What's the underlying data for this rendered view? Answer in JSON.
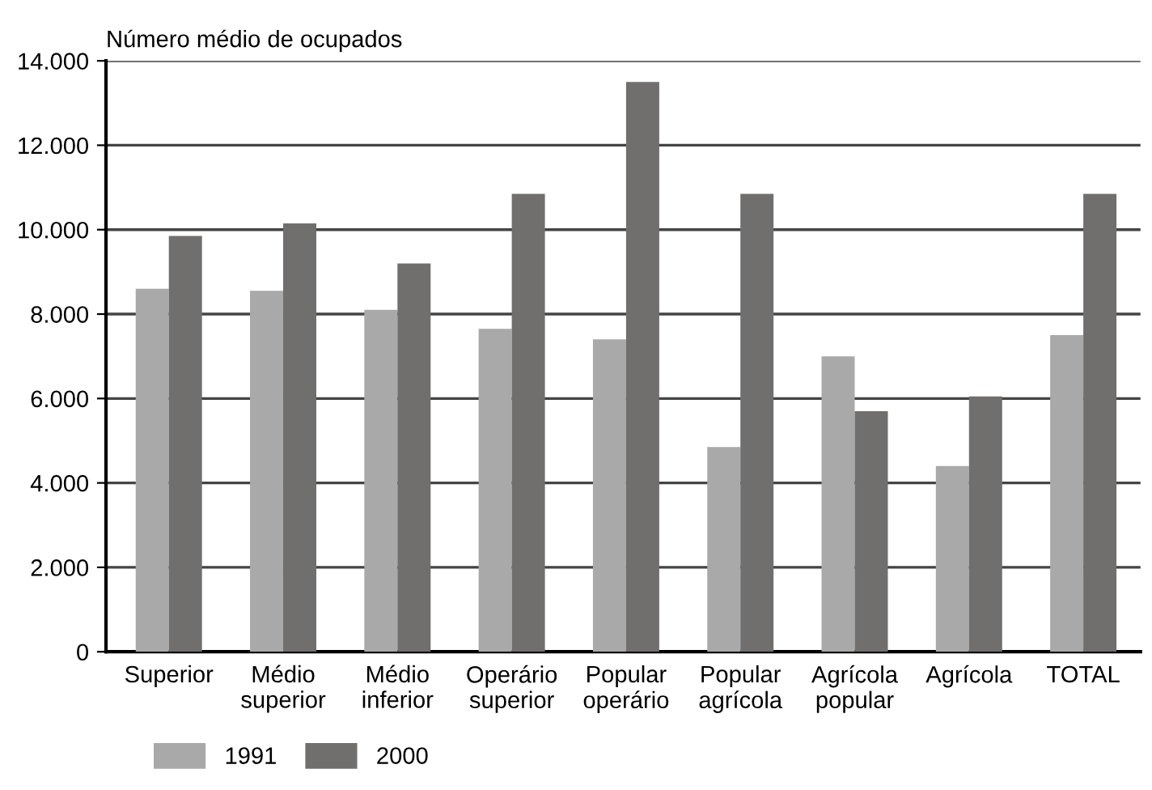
{
  "chart_data": {
    "type": "bar",
    "ylabel": "Número médio de ocupados",
    "categories": [
      "Superior",
      "Médio\nsuperior",
      "Médio\ninferior",
      "Operário\nsuperior",
      "Popular\noperário",
      "Popular\nagrícola",
      "Agrícola\npopular",
      "Agrícola",
      "TOTAL"
    ],
    "series": [
      {
        "name": "1991",
        "color": "#a9a9a9",
        "values": [
          8600,
          8550,
          8100,
          7650,
          7400,
          4850,
          7000,
          4400,
          7500
        ]
      },
      {
        "name": "2000",
        "color": "#706f6d",
        "values": [
          9850,
          10150,
          9200,
          10850,
          13500,
          10850,
          5700,
          6050,
          10850
        ]
      }
    ],
    "ylim": [
      0,
      14000
    ],
    "yticks": [
      0,
      {
        "value": 2000,
        "label": "2.000"
      },
      {
        "value": 4000,
        "label": "4.000"
      },
      {
        "value": 6000,
        "label": "6.000"
      },
      {
        "value": 8000,
        "label": "8.000"
      },
      {
        "value": 10000,
        "label": "10.000"
      },
      {
        "value": 12000,
        "label": "12.000"
      },
      {
        "value": 14000,
        "label": "14.000"
      }
    ],
    "grid": "y",
    "legend": "bottom left"
  }
}
